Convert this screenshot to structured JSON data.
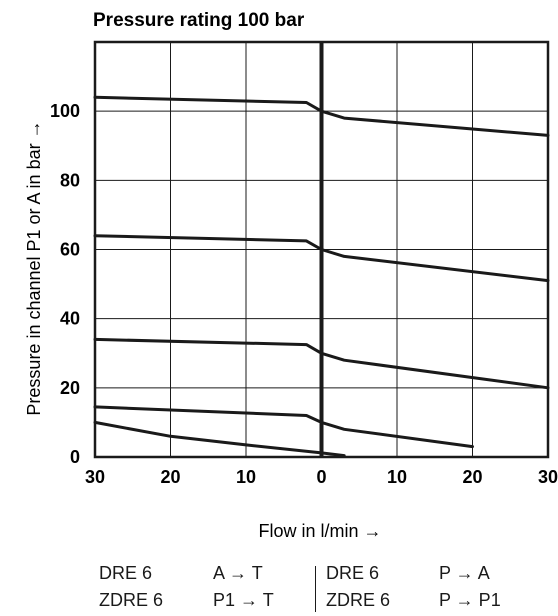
{
  "chart_data": {
    "type": "line",
    "title": "Pressure rating 100 bar",
    "ylabel": "Pressure in channel P1 or A in bar →",
    "xlabel": "Flow in l/min →",
    "x_tick_labels": [
      "30",
      "20",
      "10",
      "0",
      "10",
      "20",
      "30"
    ],
    "y_tick_labels": [
      "0",
      "20",
      "40",
      "60",
      "80",
      "100"
    ],
    "y_ticks": [
      0,
      20,
      40,
      60,
      80,
      100
    ],
    "xlim": [
      -30,
      30
    ],
    "ylim": [
      0,
      120
    ],
    "grid": true,
    "series": [
      {
        "x": [
          -30,
          -2,
          0,
          3,
          30
        ],
        "y": [
          104,
          102.5,
          100,
          98,
          93
        ]
      },
      {
        "x": [
          -30,
          -2,
          0,
          3,
          30
        ],
        "y": [
          64,
          62.5,
          60,
          58,
          51
        ]
      },
      {
        "x": [
          -30,
          -2,
          0,
          3,
          30
        ],
        "y": [
          34,
          32.5,
          30,
          28,
          20
        ]
      },
      {
        "x": [
          -30,
          -2,
          0,
          3,
          20
        ],
        "y": [
          14.5,
          12,
          10,
          8,
          3
        ]
      },
      {
        "x": [
          -30,
          -20,
          -10,
          0,
          3
        ],
        "y": [
          10,
          6,
          3.5,
          1.2,
          0.4
        ]
      }
    ]
  },
  "legend": {
    "left": {
      "row1": {
        "model": "DRE 6",
        "flow": "A → T"
      },
      "row2": {
        "model": "ZDRE 6",
        "flow": "P1 → T"
      }
    },
    "right": {
      "row1": {
        "model": "DRE 6",
        "flow": "P → A"
      },
      "row2": {
        "model": "ZDRE 6",
        "flow": "P → P1"
      }
    }
  }
}
